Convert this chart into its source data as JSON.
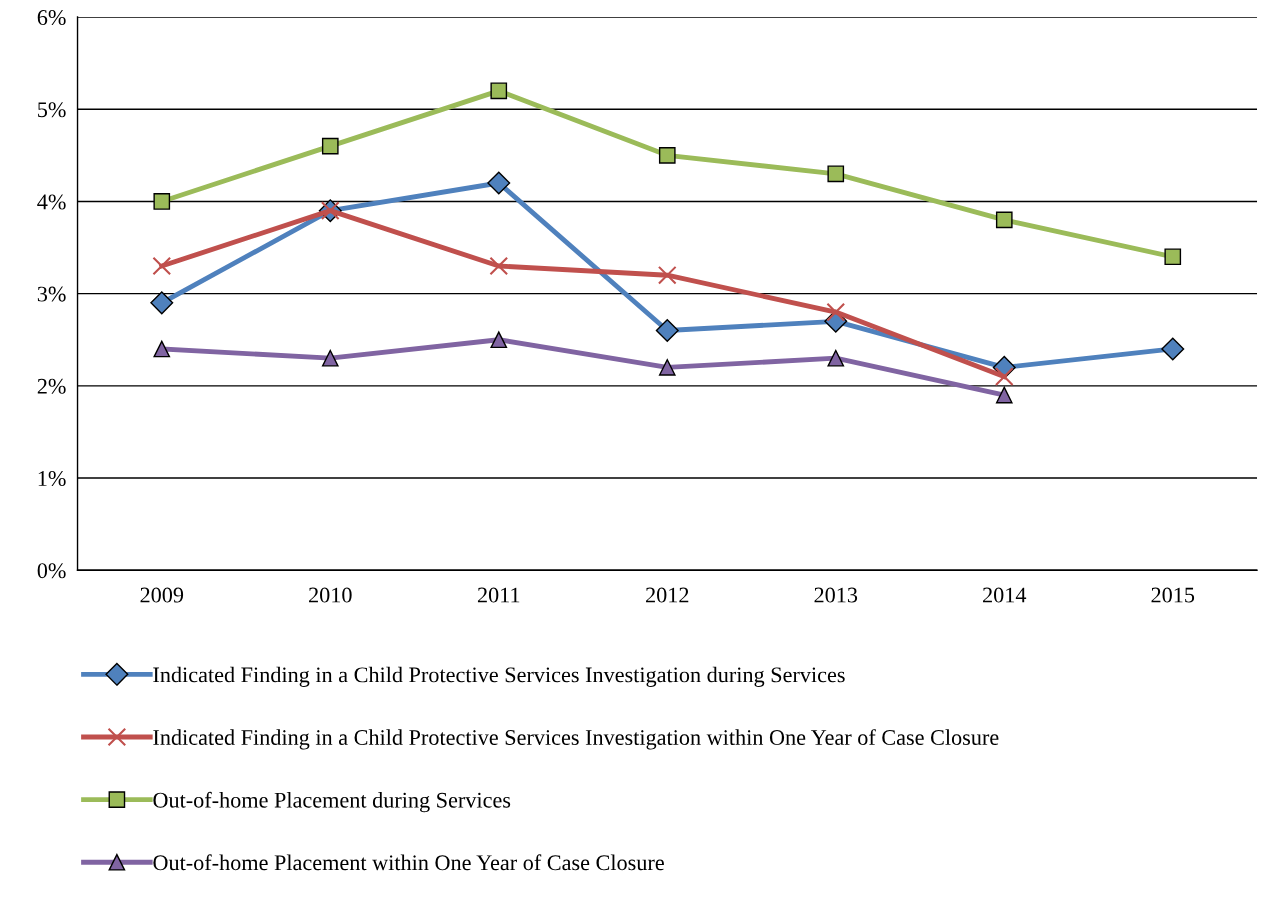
{
  "chart_data": {
    "type": "line",
    "categories": [
      "2009",
      "2010",
      "2011",
      "2012",
      "2013",
      "2014",
      "2015"
    ],
    "series": [
      {
        "name": "Indicated Finding in a Child Protective Services Investigation during Services",
        "color": "#4f81bd",
        "marker": "diamond",
        "values": [
          2.9,
          3.9,
          4.2,
          2.6,
          2.7,
          2.2,
          2.4
        ]
      },
      {
        "name": "Indicated Finding in a Child Protective Services Investigation within One Year of Case Closure",
        "color": "#c0504d",
        "marker": "cross",
        "values": [
          3.3,
          3.9,
          3.3,
          3.2,
          2.8,
          2.1,
          null
        ]
      },
      {
        "name": "Out-of-home Placement during Services",
        "color": "#9bbb59",
        "marker": "square",
        "values": [
          4.0,
          4.6,
          5.2,
          4.5,
          4.3,
          3.8,
          3.4
        ]
      },
      {
        "name": "Out-of-home Placement within One Year of Case Closure",
        "color": "#8064a2",
        "marker": "triangle",
        "values": [
          2.4,
          2.3,
          2.5,
          2.2,
          2.3,
          1.9,
          null
        ]
      }
    ],
    "ylim": [
      0,
      6
    ],
    "yticks": [
      {
        "value": 0,
        "label": "0%"
      },
      {
        "value": 1,
        "label": "1%"
      },
      {
        "value": 2,
        "label": "2%"
      },
      {
        "value": 3,
        "label": "3%"
      },
      {
        "value": 4,
        "label": "4%"
      },
      {
        "value": 5,
        "label": "5%"
      },
      {
        "value": 6,
        "label": "6%"
      }
    ],
    "grid": "y",
    "legend": "bottom"
  }
}
